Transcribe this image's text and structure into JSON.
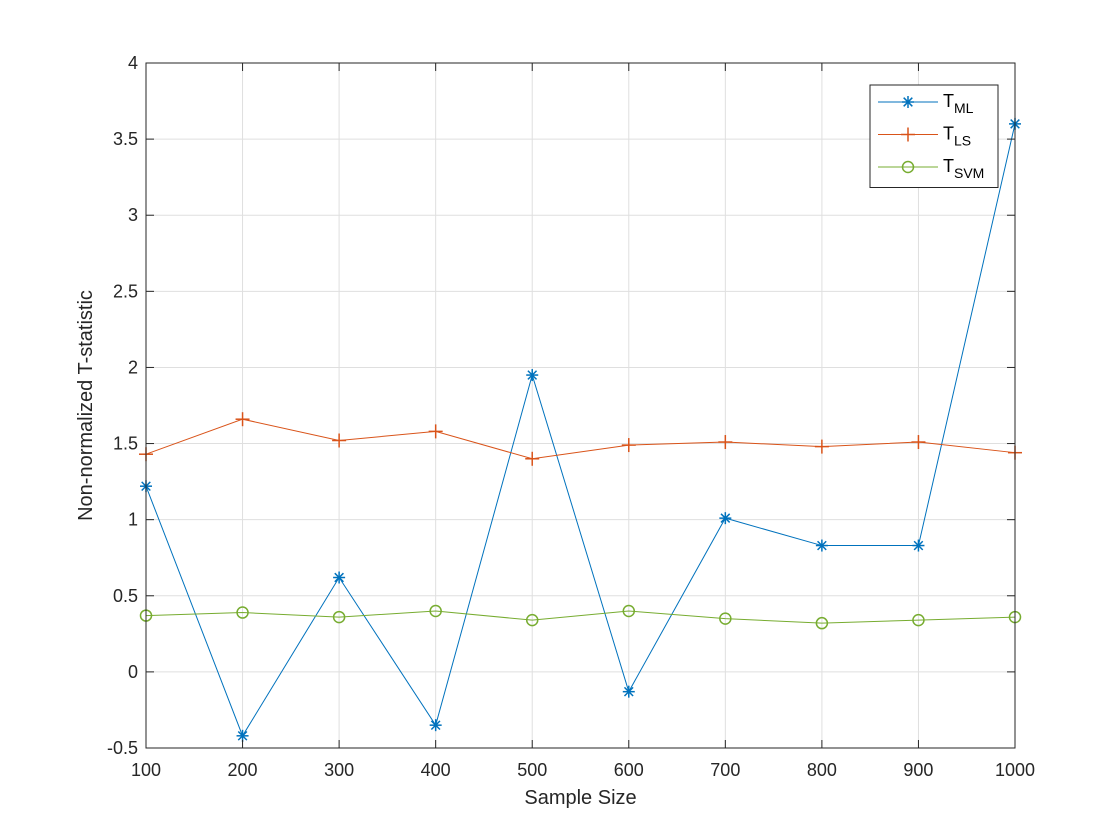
{
  "chart_data": {
    "type": "line",
    "title": "",
    "xlabel": "Sample Size",
    "ylabel": "Non-normalized T-statistic",
    "x": [
      100,
      200,
      300,
      400,
      500,
      600,
      700,
      800,
      900,
      1000
    ],
    "xlim": [
      100,
      1000
    ],
    "ylim": [
      -0.5,
      4
    ],
    "xticks": [
      100,
      200,
      300,
      400,
      500,
      600,
      700,
      800,
      900,
      1000
    ],
    "xtick_labels": [
      "100",
      "200",
      "300",
      "400",
      "500",
      "600",
      "700",
      "800",
      "900",
      "1000"
    ],
    "yticks": [
      -0.5,
      0,
      0.5,
      1,
      1.5,
      2,
      2.5,
      3,
      3.5,
      4
    ],
    "ytick_labels": [
      "-0.5",
      "0",
      "0.5",
      "1",
      "1.5",
      "2",
      "2.5",
      "3",
      "3.5",
      "4"
    ],
    "grid": true,
    "legend_position": "top-right",
    "series": [
      {
        "name": "T_ML",
        "label_main": "T",
        "label_sub": "ML",
        "color": "#0072BD",
        "marker": "asterisk",
        "values": [
          1.22,
          -0.42,
          0.62,
          -0.35,
          1.95,
          -0.13,
          1.01,
          0.83,
          0.83,
          3.6
        ]
      },
      {
        "name": "T_LS",
        "label_main": "T",
        "label_sub": "LS",
        "color": "#D95319",
        "marker": "plus",
        "values": [
          1.43,
          1.66,
          1.52,
          1.58,
          1.4,
          1.49,
          1.51,
          1.48,
          1.51,
          1.44
        ]
      },
      {
        "name": "T_SVM",
        "label_main": "T",
        "label_sub": "SVM",
        "color": "#77AC30",
        "marker": "circle",
        "values": [
          0.37,
          0.39,
          0.36,
          0.4,
          0.34,
          0.4,
          0.35,
          0.32,
          0.34,
          0.36
        ]
      }
    ]
  }
}
